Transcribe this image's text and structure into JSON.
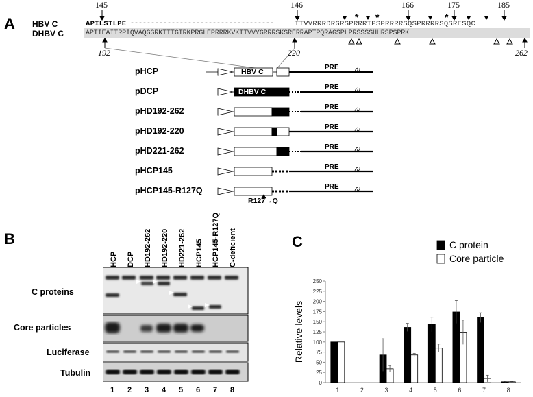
{
  "panels": {
    "a": "A",
    "b": "B",
    "c": "C"
  },
  "sequence": {
    "hbv_label": "HBV C",
    "dhbv_label": "DHBV C",
    "hbv_left": "APILSTLPE",
    "hbv_dashes": "-----------------------------------",
    "hbv_right": "TTVVRRRDRGRSPRRRTPSPRRRRSQSPRRRRSQSRESQC",
    "dhbv_seq": "APTIEAITRPIQVAQGGRKTTTGTRKPRGLEPRRRKVKTTVVYGRRRSKSRERRAPTPQRAGSPLPRSSSSHHRSPSPRK",
    "top_positions": [
      "145",
      "146",
      "166",
      "175",
      "185"
    ],
    "bottom_positions": [
      "192",
      "220",
      "262"
    ]
  },
  "constructs": [
    {
      "name": "pHCP",
      "box_text": "HBV C",
      "pre": "PRE"
    },
    {
      "name": "pDCP",
      "box_text": "DHBV C",
      "pre": "PRE"
    },
    {
      "name": "pHD192-262",
      "box_text": "",
      "pre": "PRE"
    },
    {
      "name": "pHD192-220",
      "box_text": "",
      "pre": "PRE"
    },
    {
      "name": "pHD221-262",
      "box_text": "",
      "pre": "PRE"
    },
    {
      "name": "pHCP145",
      "box_text": "",
      "pre": "PRE"
    },
    {
      "name": "pHCP145-R127Q",
      "box_text": "",
      "pre": "PRE"
    }
  ],
  "mutation_label": "R127→Q",
  "blot": {
    "lanes": [
      "HCP",
      "DCP",
      "HD192-262",
      "HD192-220",
      "HD221-262",
      "HCP145",
      "HCP145-R127Q",
      "C-deficient"
    ],
    "lane_numbers": [
      "1",
      "2",
      "3",
      "4",
      "5",
      "6",
      "7",
      "8"
    ],
    "rows": [
      "C proteins",
      "Core particles",
      "Luciferase",
      "Tubulin"
    ]
  },
  "chart_data": {
    "type": "bar",
    "title": "",
    "xlabel": "",
    "ylabel": "Relative levels",
    "categories": [
      "1",
      "2",
      "3",
      "4",
      "5",
      "6",
      "7",
      "8"
    ],
    "ylim": [
      0,
      250
    ],
    "yticks": [
      0,
      25,
      50,
      75,
      100,
      125,
      150,
      175,
      200,
      225,
      250
    ],
    "legend_placement": "top-right",
    "grid": false,
    "series": [
      {
        "name": "C protein",
        "color": "#000000",
        "values": [
          100,
          0,
          68,
          136,
          143,
          174,
          160,
          2
        ],
        "errors": [
          0,
          0,
          40,
          10,
          18,
          28,
          12,
          1
        ]
      },
      {
        "name": "Core particle",
        "color": "#ffffff",
        "values": [
          100,
          0,
          34,
          68,
          85,
          124,
          10,
          2
        ],
        "errors": [
          0,
          0,
          8,
          4,
          10,
          30,
          8,
          1
        ]
      }
    ]
  }
}
